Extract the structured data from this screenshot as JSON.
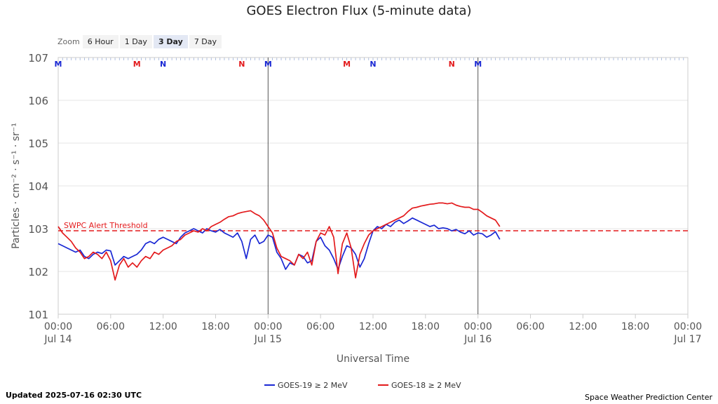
{
  "zoom": {
    "label": "Zoom",
    "buttons": [
      "6 Hour",
      "1 Day",
      "3 Day",
      "7 Day"
    ],
    "active": "3 Day"
  },
  "footer": {
    "updated": "Updated 2025-07-16 02:30 UTC",
    "source": "Space Weather Prediction Center"
  },
  "chart_data": {
    "type": "line",
    "title": "GOES Electron Flux (5-minute data)",
    "xlabel": "Universal Time",
    "ylabel": "Particles · cm⁻² · s⁻¹ · sr⁻¹",
    "yscale": "log",
    "ylim": [
      1,
      7
    ],
    "xlim": [
      0,
      72
    ],
    "x_units": "hours since Jul 14 00:00 UTC",
    "y_ticks": [
      {
        "value": 1,
        "label": "101"
      },
      {
        "value": 2,
        "label": "102"
      },
      {
        "value": 3,
        "label": "103"
      },
      {
        "value": 4,
        "label": "104"
      },
      {
        "value": 5,
        "label": "105"
      },
      {
        "value": 6,
        "label": "106"
      },
      {
        "value": 7,
        "label": "107"
      }
    ],
    "x_ticks": [
      {
        "hour": 0,
        "time": "00:00",
        "date": "Jul 14"
      },
      {
        "hour": 6,
        "time": "06:00",
        "date": ""
      },
      {
        "hour": 12,
        "time": "12:00",
        "date": ""
      },
      {
        "hour": 18,
        "time": "18:00",
        "date": ""
      },
      {
        "hour": 24,
        "time": "00:00",
        "date": "Jul 15"
      },
      {
        "hour": 30,
        "time": "06:00",
        "date": ""
      },
      {
        "hour": 36,
        "time": "12:00",
        "date": ""
      },
      {
        "hour": 42,
        "time": "18:00",
        "date": ""
      },
      {
        "hour": 48,
        "time": "00:00",
        "date": "Jul 16"
      },
      {
        "hour": 54,
        "time": "06:00",
        "date": ""
      },
      {
        "hour": 60,
        "time": "12:00",
        "date": ""
      },
      {
        "hour": 66,
        "time": "18:00",
        "date": ""
      },
      {
        "hour": 72,
        "time": "00:00",
        "date": "Jul 17"
      }
    ],
    "day_lines": [
      24,
      48
    ],
    "threshold": {
      "label": "SWPC Alert Threshold",
      "value": 2.95,
      "color": "#e31a1c"
    },
    "markers": [
      {
        "hour": 0,
        "label": "M",
        "color": "#1a28d4"
      },
      {
        "hour": 9,
        "label": "M",
        "color": "#e31a1c"
      },
      {
        "hour": 12,
        "label": "N",
        "color": "#1a28d4"
      },
      {
        "hour": 21,
        "label": "N",
        "color": "#e31a1c"
      },
      {
        "hour": 24,
        "label": "M",
        "color": "#1a28d4"
      },
      {
        "hour": 33,
        "label": "M",
        "color": "#e31a1c"
      },
      {
        "hour": 36,
        "label": "N",
        "color": "#1a28d4"
      },
      {
        "hour": 45,
        "label": "N",
        "color": "#e31a1c"
      },
      {
        "hour": 48,
        "label": "M",
        "color": "#1a28d4"
      }
    ],
    "series": [
      {
        "name": "GOES-19 ≥ 2 MeV",
        "color": "#1a28d4",
        "x": [
          0,
          0.5,
          1,
          1.5,
          2,
          2.5,
          3,
          3.5,
          4,
          4.5,
          5,
          5.5,
          6,
          6.5,
          7,
          7.5,
          8,
          8.5,
          9,
          9.5,
          10,
          10.5,
          11,
          11.5,
          12,
          12.5,
          13,
          13.5,
          14,
          14.5,
          15,
          15.5,
          16,
          16.5,
          17,
          17.5,
          18,
          18.5,
          19,
          19.5,
          20,
          20.5,
          21,
          21.5,
          22,
          22.5,
          23,
          23.5,
          24,
          24.5,
          25,
          25.5,
          26,
          26.5,
          27,
          27.5,
          28,
          28.5,
          29,
          29.5,
          30,
          30.5,
          31,
          31.5,
          32,
          32.5,
          33,
          33.5,
          34,
          34.5,
          35,
          35.5,
          36,
          36.5,
          37,
          37.5,
          38,
          38.5,
          39,
          39.5,
          40,
          40.5,
          41,
          41.5,
          42,
          42.5,
          43,
          43.5,
          44,
          44.5,
          45,
          45.5,
          46,
          46.5,
          47,
          47.5,
          48,
          48.5,
          49,
          49.5,
          50,
          50.5
        ],
        "values": [
          2.65,
          2.6,
          2.55,
          2.5,
          2.45,
          2.5,
          2.35,
          2.3,
          2.4,
          2.45,
          2.42,
          2.5,
          2.48,
          2.15,
          2.25,
          2.35,
          2.3,
          2.35,
          2.4,
          2.5,
          2.65,
          2.7,
          2.65,
          2.75,
          2.8,
          2.75,
          2.7,
          2.65,
          2.8,
          2.9,
          2.95,
          3.0,
          2.95,
          2.9,
          3.0,
          2.95,
          2.92,
          2.98,
          2.9,
          2.85,
          2.8,
          2.9,
          2.7,
          2.3,
          2.75,
          2.85,
          2.65,
          2.7,
          2.85,
          2.8,
          2.45,
          2.3,
          2.05,
          2.2,
          2.15,
          2.4,
          2.35,
          2.2,
          2.25,
          2.7,
          2.8,
          2.6,
          2.5,
          2.3,
          2.05,
          2.35,
          2.6,
          2.55,
          2.4,
          2.1,
          2.3,
          2.65,
          2.95,
          3.05,
          3.0,
          3.1,
          3.05,
          3.15,
          3.2,
          3.12,
          3.18,
          3.25,
          3.2,
          3.15,
          3.1,
          3.05,
          3.08,
          3.0,
          3.02,
          3.0,
          2.95,
          2.98,
          2.92,
          2.88,
          2.95,
          2.85,
          2.9,
          2.88,
          2.8,
          2.85,
          2.93,
          2.75
        ]
      },
      {
        "name": "GOES-18 ≥ 2 MeV",
        "color": "#e31a1c",
        "x": [
          0,
          0.5,
          1,
          1.5,
          2,
          2.5,
          3,
          3.5,
          4,
          4.5,
          5,
          5.5,
          6,
          6.5,
          7,
          7.5,
          8,
          8.5,
          9,
          9.5,
          10,
          10.5,
          11,
          11.5,
          12,
          12.5,
          13,
          13.5,
          14,
          14.5,
          15,
          15.5,
          16,
          16.5,
          17,
          17.5,
          18,
          18.5,
          19,
          19.5,
          20,
          20.5,
          21,
          21.5,
          22,
          22.5,
          23,
          23.5,
          24,
          24.5,
          25,
          25.5,
          26,
          26.5,
          27,
          27.5,
          28,
          28.5,
          29,
          29.5,
          30,
          30.5,
          31,
          31.5,
          32,
          32.5,
          33,
          33.5,
          34,
          34.5,
          35,
          35.5,
          36,
          36.5,
          37,
          37.5,
          38,
          38.5,
          39,
          39.5,
          40,
          40.5,
          41,
          41.5,
          42,
          42.5,
          43,
          43.5,
          44,
          44.5,
          45,
          45.5,
          46,
          46.5,
          47,
          47.5,
          48,
          48.5,
          49,
          49.5,
          50,
          50.5
        ],
        "values": [
          3.05,
          2.9,
          2.8,
          2.7,
          2.55,
          2.45,
          2.3,
          2.35,
          2.45,
          2.4,
          2.3,
          2.45,
          2.25,
          1.8,
          2.15,
          2.3,
          2.1,
          2.2,
          2.1,
          2.25,
          2.35,
          2.3,
          2.45,
          2.4,
          2.5,
          2.55,
          2.6,
          2.7,
          2.75,
          2.85,
          2.9,
          2.95,
          2.92,
          3.0,
          2.95,
          3.05,
          3.1,
          3.15,
          3.22,
          3.28,
          3.3,
          3.35,
          3.38,
          3.4,
          3.42,
          3.35,
          3.3,
          3.2,
          3.05,
          2.9,
          2.55,
          2.35,
          2.3,
          2.25,
          2.15,
          2.4,
          2.3,
          2.45,
          2.15,
          2.7,
          2.9,
          2.85,
          3.05,
          2.8,
          1.95,
          2.65,
          2.9,
          2.55,
          1.85,
          2.4,
          2.65,
          2.85,
          2.95,
          3.0,
          3.05,
          3.1,
          3.15,
          3.2,
          3.25,
          3.3,
          3.4,
          3.48,
          3.5,
          3.53,
          3.55,
          3.57,
          3.58,
          3.6,
          3.6,
          3.58,
          3.6,
          3.55,
          3.52,
          3.5,
          3.5,
          3.45,
          3.45,
          3.38,
          3.3,
          3.25,
          3.2,
          3.05
        ]
      }
    ]
  }
}
